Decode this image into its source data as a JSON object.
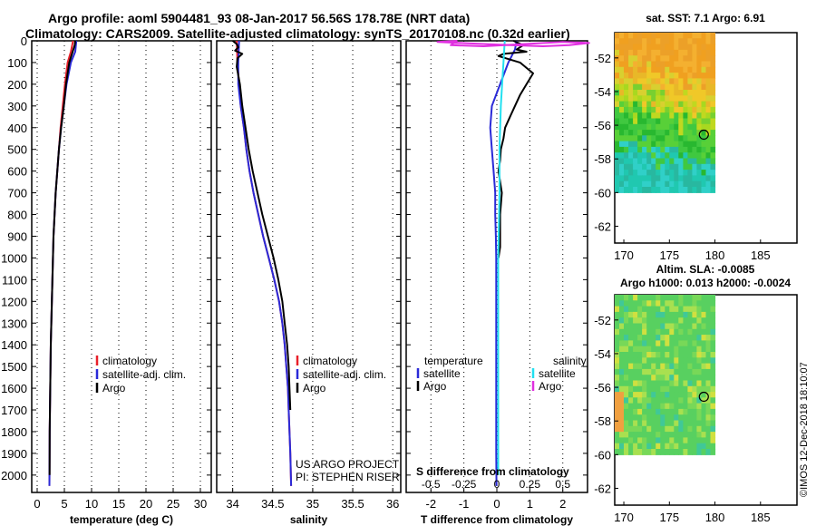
{
  "header": {
    "title_line1": "Argo profile: aoml 5904481_93 08-Jan-2017 56.56S 178.78E (NRT data)",
    "title_line2": "Climatology: CARS2009. Satellite-adjusted climatology: synTS_20170108.nc (0.32d earlier)"
  },
  "colors": {
    "climatology": "#e8202a",
    "satellite": "#2a2ad8",
    "argo": "#000000",
    "sat_salinity": "#22e0f0",
    "argo_salinity": "#e030e0"
  },
  "credits": {
    "project": "US ARGO PROJECT",
    "pi": "PI: STEPHEN RISER",
    "imos": "©IMOS 12-Dec-2018 18:10:07"
  },
  "chart_data": [
    {
      "type": "line",
      "id": "temperature",
      "xlabel": "temperature (deg C)",
      "xlim": [
        -1,
        32
      ],
      "xticks": [
        0,
        5,
        10,
        15,
        20,
        25,
        30
      ],
      "ylim": [
        2080,
        0
      ],
      "yticks": [
        0,
        100,
        200,
        300,
        400,
        500,
        600,
        700,
        800,
        900,
        1000,
        1100,
        1200,
        1300,
        1400,
        1500,
        1600,
        1700,
        1800,
        1900,
        2000
      ],
      "legend": [
        "climatology",
        "satellite-adj. clim.",
        "Argo"
      ],
      "series": [
        {
          "name": "climatology",
          "x": [
            6.6,
            6.2,
            5.6,
            5.1,
            4.7,
            4.3,
            4.0,
            3.7,
            3.4,
            3.2,
            3.0,
            2.9,
            2.8,
            2.7,
            2.6,
            2.5,
            2.45,
            2.4,
            2.35,
            2.3,
            2.28,
            2.25
          ],
          "y": [
            0,
            50,
            100,
            200,
            300,
            400,
            500,
            600,
            700,
            800,
            900,
            1000,
            1100,
            1200,
            1300,
            1400,
            1500,
            1600,
            1700,
            1800,
            1900,
            2050
          ]
        },
        {
          "name": "satellite-adj. clim.",
          "x": [
            7.2,
            7.0,
            6.2,
            5.4,
            4.9,
            4.4,
            4.0,
            3.7,
            3.4,
            3.2,
            3.0,
            2.9,
            2.8,
            2.7,
            2.6,
            2.5,
            2.45,
            2.4,
            2.35,
            2.3,
            2.28,
            2.25
          ],
          "y": [
            0,
            50,
            100,
            200,
            300,
            400,
            500,
            600,
            700,
            800,
            900,
            1000,
            1100,
            1200,
            1300,
            1400,
            1500,
            1600,
            1700,
            1800,
            1900,
            2050
          ]
        },
        {
          "name": "Argo",
          "x": [
            7.0,
            6.9,
            6.4,
            5.9,
            5.3,
            4.9,
            4.4,
            4.0,
            3.7,
            3.4,
            3.2,
            3.0,
            2.9,
            2.8,
            2.7,
            2.6,
            2.5,
            2.45,
            2.4,
            2.35,
            2.3,
            2.28
          ],
          "y": [
            0,
            20,
            60,
            100,
            200,
            300,
            400,
            500,
            600,
            700,
            800,
            900,
            1000,
            1100,
            1200,
            1300,
            1400,
            1500,
            1600,
            1700,
            1800,
            2000
          ]
        }
      ]
    },
    {
      "type": "line",
      "id": "salinity",
      "xlabel": "salinity",
      "xlim": [
        33.8,
        36.1
      ],
      "xticks": [
        34,
        34.5,
        35,
        35.5,
        36
      ],
      "xticklabels": [
        "34",
        "34.5",
        "35",
        "35.5",
        "36"
      ],
      "ylim": [
        2080,
        0
      ],
      "legend": [
        "climatology",
        "satellite-adj. clim.",
        "Argo"
      ],
      "series": [
        {
          "name": "climatology",
          "x": [
            34.05,
            34.06,
            34.08,
            34.1,
            34.14,
            34.17,
            34.21,
            34.26,
            34.32,
            34.38,
            34.45,
            34.52,
            34.58,
            34.62,
            34.65,
            34.67,
            34.69,
            34.7,
            34.71,
            34.72,
            34.73
          ],
          "y": [
            0,
            100,
            200,
            300,
            400,
            500,
            600,
            700,
            800,
            900,
            1000,
            1100,
            1200,
            1300,
            1400,
            1500,
            1600,
            1700,
            1800,
            1900,
            2050
          ]
        },
        {
          "name": "satellite-adj. clim.",
          "x": [
            34.08,
            34.07,
            34.07,
            34.1,
            34.14,
            34.17,
            34.21,
            34.26,
            34.32,
            34.38,
            34.45,
            34.52,
            34.58,
            34.62,
            34.65,
            34.67,
            34.69,
            34.7,
            34.71,
            34.72,
            34.73
          ],
          "y": [
            0,
            100,
            200,
            300,
            400,
            500,
            600,
            700,
            800,
            900,
            1000,
            1100,
            1200,
            1300,
            1400,
            1500,
            1600,
            1700,
            1800,
            1900,
            2050
          ]
        },
        {
          "name": "Argo",
          "x": [
            34.0,
            34.05,
            34.07,
            34.03,
            34.12,
            34.06,
            34.05,
            34.09,
            34.12,
            34.16,
            34.2,
            34.25,
            34.31,
            34.37,
            34.44,
            34.51,
            34.57,
            34.62,
            34.65,
            34.68,
            34.7,
            34.71,
            34.72
          ],
          "y": [
            0,
            15,
            30,
            45,
            60,
            80,
            120,
            200,
            300,
            400,
            500,
            600,
            700,
            800,
            900,
            1000,
            1100,
            1200,
            1300,
            1400,
            1500,
            1600,
            1700
          ]
        }
      ]
    },
    {
      "type": "line",
      "id": "difference",
      "xlabel": "T difference from climatology",
      "xlabel_top": "S difference from climatology",
      "xlim": [
        -2.75,
        2.75
      ],
      "xticks": [
        -2,
        -1,
        0,
        1,
        2
      ],
      "xticks_top": [
        -0.5,
        -0.25,
        0,
        0.25,
        0.5
      ],
      "ylim": [
        2080,
        0
      ],
      "legend": {
        "temperature_heading": "temperature",
        "salinity_heading": "salinity",
        "temperature": [
          "satellite",
          "Argo"
        ],
        "salinity": [
          "satellite",
          "Argo"
        ]
      },
      "series": [
        {
          "name": "temperature satellite",
          "x": [
            0.6,
            0.55,
            0.35,
            0.1,
            -0.15,
            -0.2,
            -0.15,
            -0.1,
            -0.05,
            -0.05,
            -0.03,
            -0.02,
            -0.02,
            -0.02,
            -0.02,
            -0.02,
            -0.02,
            -0.01
          ],
          "y": [
            0,
            40,
            100,
            200,
            300,
            400,
            500,
            600,
            700,
            800,
            900,
            1000,
            1200,
            1400,
            1600,
            1800,
            1900,
            2050
          ]
        },
        {
          "name": "temperature Argo",
          "x": [
            0.5,
            0.8,
            0.6,
            0.9,
            0.2,
            0.05,
            0.7,
            1.1,
            0.9,
            0.7,
            0.55,
            0.4,
            0.25,
            0.2,
            0.12,
            0.1,
            0.05,
            0.15,
            0.1,
            0.1,
            0.1,
            0.05
          ],
          "y": [
            0,
            20,
            40,
            50,
            60,
            70,
            100,
            150,
            200,
            250,
            300,
            350,
            400,
            450,
            500,
            550,
            600,
            700,
            800,
            900,
            950,
            1000
          ]
        },
        {
          "name": "salinity satellite",
          "x": [
            0.06,
            0.05,
            0.04,
            0.03,
            0.02,
            0.02,
            0.01,
            0.01,
            0.01,
            0.01
          ],
          "y": [
            0,
            100,
            200,
            300,
            500,
            700,
            1000,
            1400,
            1800,
            2000
          ]
        },
        {
          "name": "salinity Argo",
          "x": [
            -0.3,
            -0.45,
            -0.2,
            0.1,
            0.35,
            0.55,
            0.7,
            0.5,
            0.2,
            -0.1,
            -0.35,
            -0.3
          ],
          "y": [
            0,
            5,
            12,
            20,
            25,
            20,
            10,
            5,
            15,
            25,
            20,
            0
          ]
        }
      ]
    },
    {
      "type": "heatmap",
      "id": "sst_map",
      "title": "sat. SST: 7.1 Argo: 6.91",
      "xlim": [
        169,
        189
      ],
      "ylim": [
        -63,
        -50.5
      ],
      "xticks": [
        170,
        175,
        180,
        185
      ],
      "yticks": [
        -52,
        -54,
        -56,
        -58,
        -60,
        -62
      ],
      "yticklabels": [
        "-52",
        "-54",
        "-56",
        "-58",
        "-60",
        "-62"
      ],
      "argo_position": [
        178.78,
        -56.56
      ]
    },
    {
      "type": "heatmap",
      "id": "sla_map",
      "title_line1": "Altim. SLA: -0.0085",
      "title_line2": "Argo h1000: 0.013 h2000: -0.0024",
      "xlim": [
        169,
        189
      ],
      "ylim": [
        -63,
        -50.5
      ],
      "xticks": [
        170,
        175,
        180,
        185
      ],
      "yticks": [
        -52,
        -54,
        -56,
        -58,
        -60,
        -62
      ],
      "yticklabels": [
        "-52",
        "-54",
        "-56",
        "-58",
        "-60",
        "-62"
      ],
      "argo_position": [
        178.78,
        -56.56
      ]
    }
  ]
}
